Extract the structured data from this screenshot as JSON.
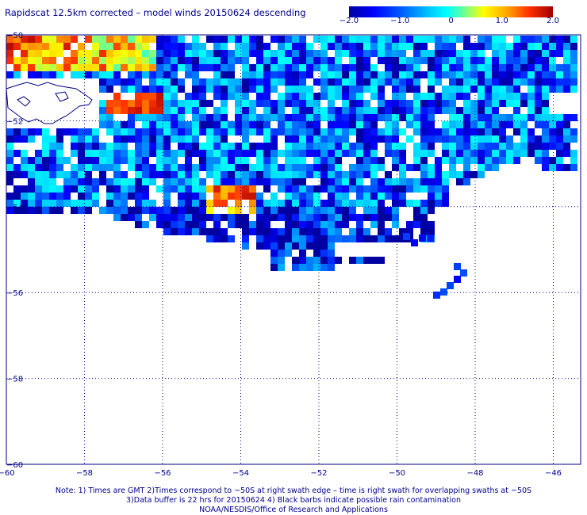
{
  "title": "Rapidscat 12.5km corrected – model winds 20150624 descending",
  "colorbar": {
    "ticks": [
      "−2.0",
      "−1.0",
      "0",
      "1.0",
      "2.0"
    ],
    "min": -2.0,
    "max": 2.0,
    "colors": [
      "#0000a0",
      "#0000ff",
      "#0066ff",
      "#00ccff",
      "#00ffff",
      "#66ff99",
      "#ffff00",
      "#ffaa00",
      "#ff3300",
      "#a00000"
    ]
  },
  "map": {
    "lat_labels": [
      "−50",
      "−52",
      "−54",
      "−56",
      "−58",
      "−60"
    ],
    "lon_labels": [
      "−60",
      "−58",
      "−56",
      "−54",
      "−52",
      "−50",
      "−48",
      "−46"
    ],
    "lat_range": [
      -60,
      -50
    ],
    "lon_range": [
      -60,
      -45.1
    ],
    "grid": "dotted",
    "coastline_color": "#000080"
  },
  "notes": {
    "line1": "Note: 1) Times are GMT 2)Times correspond to ~50S at right swath edge – time is right swath for overlapping swaths at ~50S",
    "line2": "3)Data buffer is 22 hrs for 20150624 4) Black barbs indicate possible rain contamination",
    "line3": "NOAA/NESDIS/Office of Research and Applications"
  }
}
